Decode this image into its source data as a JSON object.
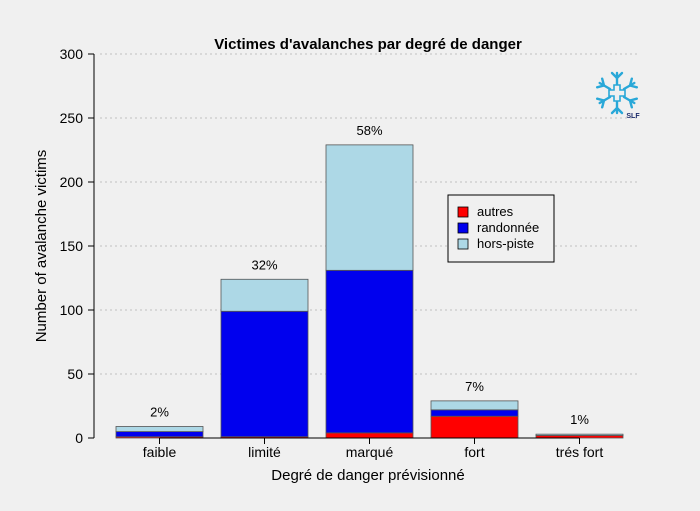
{
  "chart_data": {
    "type": "bar",
    "stacked": true,
    "title": "Victimes d'avalanches par degré de danger",
    "xlabel": "Degré de danger prévisionné",
    "ylabel": "Number of avalanche victims",
    "ylim": [
      0,
      300
    ],
    "yticks": [
      0,
      50,
      100,
      150,
      200,
      250,
      300
    ],
    "grid": "horizontal dotted",
    "legend_position": "right",
    "categories": [
      "faible",
      "limité",
      "marqué",
      "fort",
      "trés fort"
    ],
    "series": [
      {
        "name": "autres",
        "color": "#ff0000",
        "values": [
          1,
          1,
          4,
          17,
          2
        ]
      },
      {
        "name": "randonnée",
        "color": "#0000ee",
        "values": [
          4,
          98,
          127,
          5,
          0
        ]
      },
      {
        "name": "hors-piste",
        "color": "#add8e6",
        "values": [
          4,
          25,
          98,
          7,
          1
        ]
      }
    ],
    "bar_labels": [
      "2%",
      "32%",
      "58%",
      "7%",
      "1%"
    ]
  },
  "logo": {
    "text": "SLF",
    "color": "#29a8d8",
    "icon": "snowflake-cross-icon"
  }
}
